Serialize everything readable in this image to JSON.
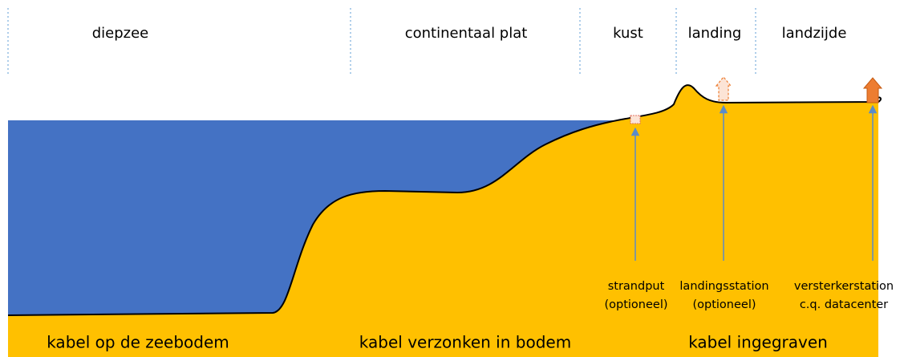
{
  "zones": [
    "diepzee",
    "continentaal plat",
    "kust",
    "landing",
    "landzijde"
  ],
  "bottom_labels": [
    "kabel op de zeebodem",
    "kabel verzonken in bodem",
    "kabel ingegraven"
  ],
  "markers": [
    {
      "lines": [
        "strandput",
        "(optioneel)"
      ]
    },
    {
      "lines": [
        "landingsstation",
        "(optioneel)"
      ]
    },
    {
      "lines": [
        "versterkerstation",
        "c.q. datacenter"
      ]
    }
  ]
}
